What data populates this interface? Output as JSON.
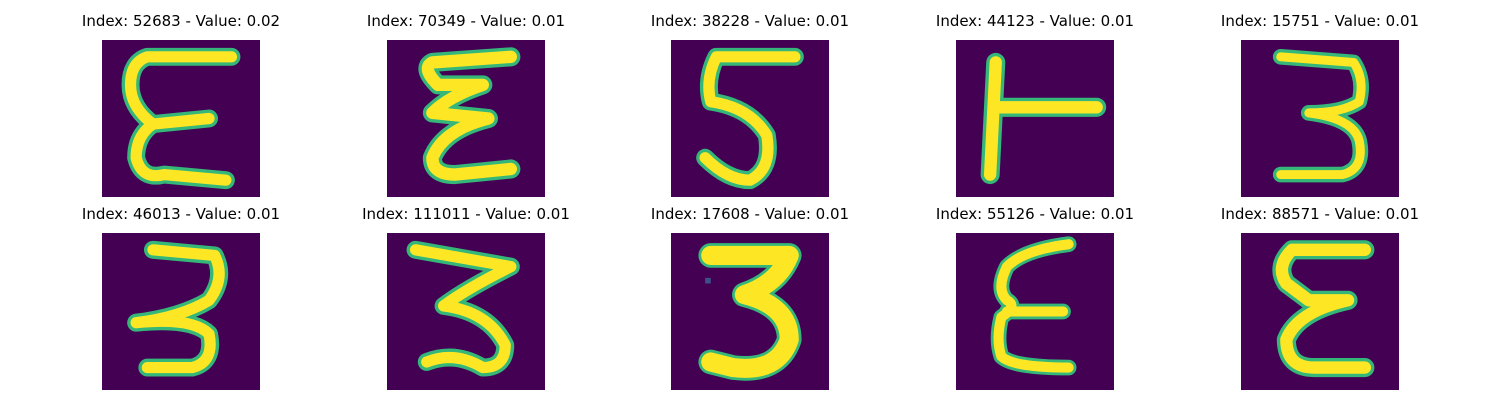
{
  "colors": {
    "background": "#440154",
    "glyph_fill": "#fde725",
    "glyph_edge": "#35b779"
  },
  "panels": [
    {
      "title": "Index: 52683 - Value: 0.02",
      "glyph": "E-like"
    },
    {
      "title": "Index: 70349 - Value: 0.01",
      "glyph": "E-like"
    },
    {
      "title": "Index: 38228 - Value: 0.01",
      "glyph": "5-like"
    },
    {
      "title": "Index: 44123 - Value: 0.01",
      "glyph": "T-side"
    },
    {
      "title": "Index: 15751 - Value: 0.01",
      "glyph": "3-like"
    },
    {
      "title": "Index: 46013 - Value: 0.01",
      "glyph": "3-like"
    },
    {
      "title": "Index: 111011 - Value: 0.01",
      "glyph": "3-like"
    },
    {
      "title": "Index: 17608 - Value: 0.01",
      "glyph": "3-like"
    },
    {
      "title": "Index: 55126 - Value: 0.01",
      "glyph": "E-like"
    },
    {
      "title": "Index: 88571 - Value: 0.01",
      "glyph": "E-like"
    }
  ]
}
